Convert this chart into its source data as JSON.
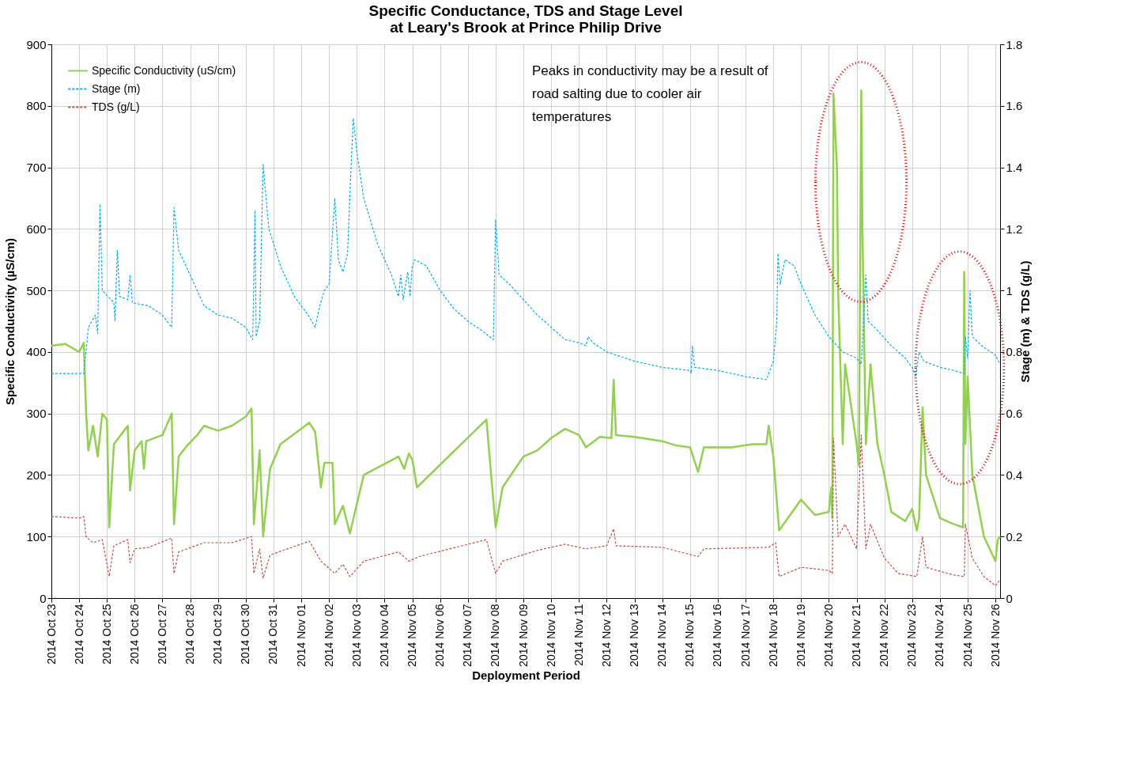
{
  "chart_data": {
    "type": "line",
    "title": "Specific Conductance, TDS and Stage Level\nat Leary's Brook at Prince Philip Drive",
    "xlabel": "Deployment Period",
    "ylabel": "Specific Conductivity (µS/cm)",
    "y2label": "Stage (m) & TDS (g/L)",
    "annotations": [
      "Peaks in conductivity may be a result of\nroad salting due to cooler air\ntemperatures"
    ],
    "xlim": [
      "2014-10-23T00:00",
      "2014-11-26T04:00"
    ],
    "xticks": [
      {
        "value": "2014-10-23",
        "label": "2014 Oct 23"
      },
      {
        "value": "2014-10-24",
        "label": "2014 Oct 24"
      },
      {
        "value": "2014-10-25",
        "label": "2014 Oct 25"
      },
      {
        "value": "2014-10-26",
        "label": "2014 Oct 26"
      },
      {
        "value": "2014-10-27",
        "label": "2014 Oct 27"
      },
      {
        "value": "2014-10-28",
        "label": "2014 Oct 28"
      },
      {
        "value": "2014-10-29",
        "label": "2014 Oct 29"
      },
      {
        "value": "2014-10-30",
        "label": "2014 Oct 30"
      },
      {
        "value": "2014-10-31",
        "label": "2014 Oct 31"
      },
      {
        "value": "2014-11-01",
        "label": "2014 Nov 01"
      },
      {
        "value": "2014-11-02",
        "label": "2014 Nov 02"
      },
      {
        "value": "2014-11-03",
        "label": "2014 Nov 03"
      },
      {
        "value": "2014-11-04",
        "label": "2014 Nov 04"
      },
      {
        "value": "2014-11-05",
        "label": "2014 Nov 05"
      },
      {
        "value": "2014-11-06",
        "label": "2014 Nov 06"
      },
      {
        "value": "2014-11-07",
        "label": "2014 Nov 07"
      },
      {
        "value": "2014-11-08",
        "label": "2014 Nov 08"
      },
      {
        "value": "2014-11-09",
        "label": "2014 Nov 09"
      },
      {
        "value": "2014-11-10",
        "label": "2014 Nov 10"
      },
      {
        "value": "2014-11-11",
        "label": "2014 Nov 11"
      },
      {
        "value": "2014-11-12",
        "label": "2014 Nov 12"
      },
      {
        "value": "2014-11-13",
        "label": "2014 Nov 13"
      },
      {
        "value": "2014-11-14",
        "label": "2014 Nov 14"
      },
      {
        "value": "2014-11-15",
        "label": "2014 Nov 15"
      },
      {
        "value": "2014-11-16",
        "label": "2014 Nov 16"
      },
      {
        "value": "2014-11-17",
        "label": "2014 Nov 17"
      },
      {
        "value": "2014-11-18",
        "label": "2014 Nov 18"
      },
      {
        "value": "2014-11-19",
        "label": "2014 Nov 19"
      },
      {
        "value": "2014-11-20",
        "label": "2014 Nov 20"
      },
      {
        "value": "2014-11-21",
        "label": "2014 Nov 21"
      },
      {
        "value": "2014-11-22",
        "label": "2014 Nov 22"
      },
      {
        "value": "2014-11-23",
        "label": "2014 Nov 23"
      },
      {
        "value": "2014-11-24",
        "label": "2014 Nov 24"
      },
      {
        "value": "2014-11-25",
        "label": "2014 Nov 25"
      },
      {
        "value": "2014-11-26",
        "label": "2014 Nov 26"
      }
    ],
    "ylim": [
      0,
      900
    ],
    "yticks": [
      0,
      100,
      200,
      300,
      400,
      500,
      600,
      700,
      800,
      900
    ],
    "y2lim": [
      0,
      1.8
    ],
    "y2ticks": [
      0,
      0.2,
      0.4,
      0.6,
      0.8,
      1,
      1.2,
      1.4,
      1.6,
      1.8
    ],
    "grid": true,
    "legend": "top left",
    "marker": "none",
    "series": [
      {
        "name": "Specific Conductivity (uS/cm)",
        "color": "#92d050",
        "line_style": "solid",
        "x": [
          "2014-10-23T00:00",
          "2014-10-23T12:00",
          "2014-10-24T00:00",
          "2014-10-24T04:00",
          "2014-10-24T06:00",
          "2014-10-24T08:00",
          "2014-10-24T12:00",
          "2014-10-24T16:00",
          "2014-10-24T20:00",
          "2014-10-25T00:00",
          "2014-10-25T02:00",
          "2014-10-25T06:00",
          "2014-10-25T18:00",
          "2014-10-25T20:00",
          "2014-10-26T00:00",
          "2014-10-26T06:00",
          "2014-10-26T08:00",
          "2014-10-26T10:00",
          "2014-10-27T00:00",
          "2014-10-27T08:00",
          "2014-10-27T10:00",
          "2014-10-27T14:00",
          "2014-10-27T20:00",
          "2014-10-28T06:00",
          "2014-10-28T12:00",
          "2014-10-29T00:00",
          "2014-10-29T12:00",
          "2014-10-30T00:00",
          "2014-10-30T05:00",
          "2014-10-30T07:00",
          "2014-10-30T12:00",
          "2014-10-30T15:00",
          "2014-10-30T21:00",
          "2014-10-31T06:00",
          "2014-11-01T07:00",
          "2014-11-01T12:00",
          "2014-11-01T17:00",
          "2014-11-01T20:00",
          "2014-11-02T03:00",
          "2014-11-02T05:00",
          "2014-11-02T12:00",
          "2014-11-02T18:00",
          "2014-11-03T06:00",
          "2014-11-04T12:00",
          "2014-11-04T17:00",
          "2014-11-04T21:00",
          "2014-11-05T00:00",
          "2014-11-05T04:00",
          "2014-11-07T16:00",
          "2014-11-08T00:00",
          "2014-11-08T06:00",
          "2014-11-09T00:00",
          "2014-11-09T12:00",
          "2014-11-10T00:00",
          "2014-11-10T12:00",
          "2014-11-11T00:00",
          "2014-11-11T06:00",
          "2014-11-11T18:00",
          "2014-11-12T04:00",
          "2014-11-12T06:00",
          "2014-11-12T08:00",
          "2014-11-13T00:00",
          "2014-11-14T00:00",
          "2014-11-14T12:00",
          "2014-11-15T00:00",
          "2014-11-15T07:00",
          "2014-11-15T12:00",
          "2014-11-16T12:00",
          "2014-11-17T06:00",
          "2014-11-17T18:00",
          "2014-11-17T20:00",
          "2014-11-18T00:00",
          "2014-11-18T05:00",
          "2014-11-19T00:00",
          "2014-11-19T12:00",
          "2014-11-20T00:00",
          "2014-11-20T02:00",
          "2014-11-20T03:00",
          "2014-11-20T04:00",
          "2014-11-20T07:00",
          "2014-11-20T08:00",
          "2014-11-20T12:00",
          "2014-11-20T14:00",
          "2014-11-21T00:00",
          "2014-11-21T02:00",
          "2014-11-21T04:00",
          "2014-11-21T05:00",
          "2014-11-21T08:00",
          "2014-11-21T12:00",
          "2014-11-21T18:00",
          "2014-11-22T00:00",
          "2014-11-22T06:00",
          "2014-11-22T18:00",
          "2014-11-23T00:00",
          "2014-11-23T04:00",
          "2014-11-23T06:00",
          "2014-11-23T09:00",
          "2014-11-23T12:00",
          "2014-11-24T00:00",
          "2014-11-24T12:00",
          "2014-11-24T20:00",
          "2014-11-24T21:00",
          "2014-11-24T22:00",
          "2014-11-25T00:00",
          "2014-11-25T04:00",
          "2014-11-25T08:00",
          "2014-11-25T14:00",
          "2014-11-26T00:00",
          "2014-11-26T02:00",
          "2014-11-26T04:00"
        ],
        "values": [
          410,
          413,
          400,
          415,
          300,
          240,
          280,
          230,
          300,
          290,
          115,
          250,
          280,
          175,
          240,
          255,
          210,
          255,
          265,
          300,
          120,
          230,
          245,
          265,
          280,
          272,
          280,
          295,
          308,
          120,
          240,
          100,
          210,
          250,
          285,
          270,
          180,
          220,
          220,
          120,
          150,
          105,
          200,
          230,
          210,
          235,
          225,
          180,
          290,
          115,
          180,
          230,
          240,
          260,
          275,
          265,
          245,
          262,
          260,
          355,
          265,
          262,
          255,
          248,
          245,
          205,
          245,
          245,
          250,
          250,
          280,
          230,
          110,
          160,
          135,
          140,
          180,
          130,
          820,
          700,
          500,
          250,
          380,
          250,
          215,
          825,
          600,
          250,
          380,
          250,
          200,
          140,
          125,
          145,
          110,
          130,
          310,
          200,
          130,
          120,
          115,
          530,
          250,
          360,
          200,
          160,
          100,
          60,
          95,
          100
        ]
      },
      {
        "name": "Stage (m)",
        "color": "#00b0f0",
        "line_style": "dashed",
        "axis": "y2",
        "x": [
          "2014-10-23T00:00",
          "2014-10-24T04:00",
          "2014-10-24T08:00",
          "2014-10-24T14:00",
          "2014-10-24T16:00",
          "2014-10-24T18:00",
          "2014-10-24T20:00",
          "2014-10-25T06:00",
          "2014-10-25T07:00",
          "2014-10-25T09:00",
          "2014-10-25T11:00",
          "2014-10-25T18:00",
          "2014-10-25T20:00",
          "2014-10-25T22:00",
          "2014-10-26T12:00",
          "2014-10-27T00:00",
          "2014-10-27T08:00",
          "2014-10-27T10:00",
          "2014-10-27T14:00",
          "2014-10-28T00:00",
          "2014-10-28T12:00",
          "2014-10-29T00:00",
          "2014-10-29T12:00",
          "2014-10-30T00:00",
          "2014-10-30T06:00",
          "2014-10-30T08:00",
          "2014-10-30T09:00",
          "2014-10-30T12:00",
          "2014-10-30T15:00",
          "2014-10-30T20:00",
          "2014-10-31T06:00",
          "2014-10-31T18:00",
          "2014-11-01T06:00",
          "2014-11-01T12:00",
          "2014-11-01T16:00",
          "2014-11-01T20:00",
          "2014-11-02T00:00",
          "2014-11-02T05:00",
          "2014-11-02T08:00",
          "2014-11-02T12:00",
          "2014-11-02T16:00",
          "2014-11-02T19:00",
          "2014-11-02T21:00",
          "2014-11-03T00:00",
          "2014-11-03T06:00",
          "2014-11-03T18:00",
          "2014-11-04T06:00",
          "2014-11-04T12:00",
          "2014-11-04T14:00",
          "2014-11-04T16:00",
          "2014-11-04T20:00",
          "2014-11-04T22:00",
          "2014-11-05T00:00",
          "2014-11-05T02:00",
          "2014-11-05T12:00",
          "2014-11-06T00:00",
          "2014-11-06T12:00",
          "2014-11-07T00:00",
          "2014-11-07T12:00",
          "2014-11-07T22:00",
          "2014-11-08T00:00",
          "2014-11-08T03:00",
          "2014-11-08T12:00",
          "2014-11-09T00:00",
          "2014-11-09T12:00",
          "2014-11-10T00:00",
          "2014-11-10T12:00",
          "2014-11-11T00:00",
          "2014-11-11T06:00",
          "2014-11-11T08:00",
          "2014-11-11T12:00",
          "2014-11-12T00:00",
          "2014-11-13T00:00",
          "2014-11-14T00:00",
          "2014-11-15T00:00",
          "2014-11-15T01:00",
          "2014-11-15T02:00",
          "2014-11-15T04:00",
          "2014-11-16T00:00",
          "2014-11-17T00:00",
          "2014-11-17T18:00",
          "2014-11-18T00:00",
          "2014-11-18T03:00",
          "2014-11-18T04:00",
          "2014-11-18T06:00",
          "2014-11-18T10:00",
          "2014-11-18T18:00",
          "2014-11-19T00:00",
          "2014-11-19T12:00",
          "2014-11-20T00:00",
          "2014-11-20T12:00",
          "2014-11-21T00:00",
          "2014-11-21T04:00",
          "2014-11-21T06:00",
          "2014-11-21T08:00",
          "2014-11-21T10:00",
          "2014-11-21T18:00",
          "2014-11-22T06:00",
          "2014-11-22T18:00",
          "2014-11-23T00:00",
          "2014-11-23T03:00",
          "2014-11-23T06:00",
          "2014-11-23T10:00",
          "2014-11-24T00:00",
          "2014-11-24T12:00",
          "2014-11-24T21:00",
          "2014-11-24T22:00",
          "2014-11-25T00:00",
          "2014-11-25T02:00",
          "2014-11-25T04:00",
          "2014-11-25T12:00",
          "2014-11-26T00:00",
          "2014-11-26T04:00"
        ],
        "values": [
          0.73,
          0.73,
          0.88,
          0.92,
          0.86,
          1.28,
          1.0,
          0.96,
          0.9,
          1.13,
          0.98,
          0.97,
          1.05,
          0.96,
          0.95,
          0.92,
          0.88,
          1.27,
          1.13,
          1.05,
          0.95,
          0.92,
          0.91,
          0.88,
          0.84,
          1.26,
          0.85,
          0.9,
          1.41,
          1.2,
          1.08,
          0.98,
          0.92,
          0.88,
          0.95,
          1.0,
          1.02,
          1.3,
          1.1,
          1.06,
          1.12,
          1.4,
          1.56,
          1.45,
          1.3,
          1.15,
          1.05,
          0.98,
          1.05,
          0.97,
          1.06,
          0.98,
          1.08,
          1.1,
          1.08,
          1.0,
          0.94,
          0.9,
          0.87,
          0.84,
          1.23,
          1.05,
          1.02,
          0.97,
          0.92,
          0.88,
          0.84,
          0.83,
          0.82,
          0.85,
          0.83,
          0.8,
          0.77,
          0.75,
          0.74,
          0.73,
          0.82,
          0.75,
          0.74,
          0.72,
          0.71,
          0.77,
          0.9,
          1.12,
          1.02,
          1.1,
          1.08,
          1.02,
          0.92,
          0.85,
          0.8,
          0.78,
          0.76,
          0.9,
          1.05,
          0.9,
          0.87,
          0.82,
          0.78,
          0.75,
          0.72,
          0.8,
          0.77,
          0.75,
          0.74,
          0.73,
          0.85,
          0.78,
          1.0,
          0.85,
          0.82,
          0.79,
          0.76
        ]
      },
      {
        "name": "TDS (g/L)",
        "color": "#c0504d",
        "line_style": "dashed",
        "axis": "y2",
        "x": [
          "2014-10-23T00:00",
          "2014-10-24T00:00",
          "2014-10-24T04:00",
          "2014-10-24T06:00",
          "2014-10-24T12:00",
          "2014-10-24T20:00",
          "2014-10-25T02:00",
          "2014-10-25T06:00",
          "2014-10-25T18:00",
          "2014-10-25T20:00",
          "2014-10-26T00:00",
          "2014-10-26T12:00",
          "2014-10-27T08:00",
          "2014-10-27T10:00",
          "2014-10-27T14:00",
          "2014-10-28T12:00",
          "2014-10-29T12:00",
          "2014-10-30T05:00",
          "2014-10-30T07:00",
          "2014-10-30T12:00",
          "2014-10-30T15:00",
          "2014-10-30T21:00",
          "2014-11-01T07:00",
          "2014-11-01T17:00",
          "2014-11-02T05:00",
          "2014-11-02T12:00",
          "2014-11-02T18:00",
          "2014-11-03T06:00",
          "2014-11-04T12:00",
          "2014-11-04T21:00",
          "2014-11-05T06:00",
          "2014-11-07T16:00",
          "2014-11-08T00:00",
          "2014-11-08T06:00",
          "2014-11-09T12:00",
          "2014-11-10T12:00",
          "2014-11-11T06:00",
          "2014-11-12T00:00",
          "2014-11-12T06:00",
          "2014-11-12T08:00",
          "2014-11-14T00:00",
          "2014-11-15T07:00",
          "2014-11-15T12:00",
          "2014-11-17T20:00",
          "2014-11-18T02:00",
          "2014-11-18T05:00",
          "2014-11-19T00:00",
          "2014-11-20T00:00",
          "2014-11-20T03:00",
          "2014-11-20T04:00",
          "2014-11-20T08:00",
          "2014-11-20T14:00",
          "2014-11-21T00:00",
          "2014-11-21T04:00",
          "2014-11-21T08:00",
          "2014-11-21T12:00",
          "2014-11-22T00:00",
          "2014-11-22T12:00",
          "2014-11-23T04:00",
          "2014-11-23T09:00",
          "2014-11-23T12:00",
          "2014-11-24T12:00",
          "2014-11-24T21:00",
          "2014-11-24T22:00",
          "2014-11-25T04:00",
          "2014-11-25T14:00",
          "2014-11-26T00:00",
          "2014-11-26T04:00"
        ],
        "values": [
          0.265,
          0.26,
          0.265,
          0.2,
          0.18,
          0.19,
          0.07,
          0.17,
          0.19,
          0.115,
          0.16,
          0.165,
          0.195,
          0.08,
          0.15,
          0.18,
          0.18,
          0.2,
          0.08,
          0.16,
          0.065,
          0.14,
          0.185,
          0.12,
          0.08,
          0.11,
          0.07,
          0.12,
          0.15,
          0.12,
          0.135,
          0.19,
          0.08,
          0.12,
          0.155,
          0.175,
          0.16,
          0.17,
          0.225,
          0.17,
          0.165,
          0.135,
          0.16,
          0.165,
          0.18,
          0.07,
          0.1,
          0.09,
          0.08,
          0.52,
          0.2,
          0.24,
          0.16,
          0.53,
          0.16,
          0.24,
          0.13,
          0.08,
          0.07,
          0.2,
          0.1,
          0.075,
          0.07,
          0.24,
          0.13,
          0.07,
          0.04,
          0.06
        ]
      }
    ]
  }
}
